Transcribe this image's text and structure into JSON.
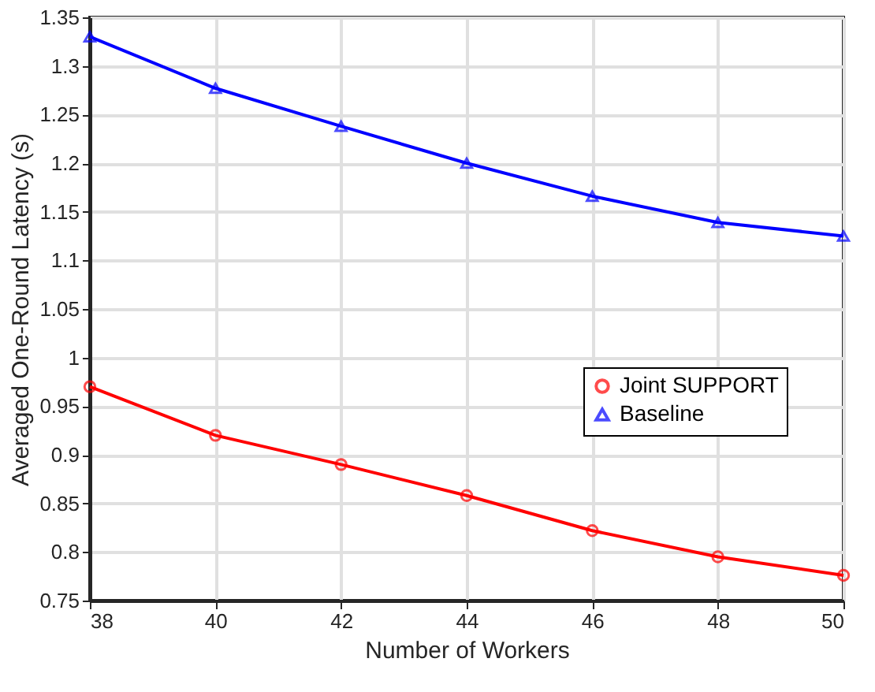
{
  "chart_data": {
    "type": "line",
    "xlabel": "Number of Workers",
    "ylabel": "Averaged One-Round Latency (s)",
    "x": [
      38,
      40,
      42,
      44,
      46,
      48,
      50
    ],
    "series": [
      {
        "name": "Joint SUPPORT",
        "color": "#ff0000",
        "marker": "circle",
        "values": [
          0.97,
          0.92,
          0.89,
          0.858,
          0.822,
          0.795,
          0.776
        ]
      },
      {
        "name": "Baseline",
        "color": "#0000ff",
        "marker": "triangle",
        "values": [
          1.33,
          1.277,
          1.238,
          1.2,
          1.166,
          1.139,
          1.125
        ]
      }
    ],
    "xlim": [
      38,
      50
    ],
    "xticks": [
      38,
      40,
      42,
      44,
      46,
      48,
      50
    ],
    "ylim": [
      0.75,
      1.35
    ],
    "yticks": [
      0.75,
      0.8,
      0.85,
      0.9,
      0.95,
      1,
      1.05,
      1.1,
      1.15,
      1.2,
      1.25,
      1.3,
      1.35
    ],
    "grid": true,
    "legend": "right",
    "line_style": "solid"
  }
}
